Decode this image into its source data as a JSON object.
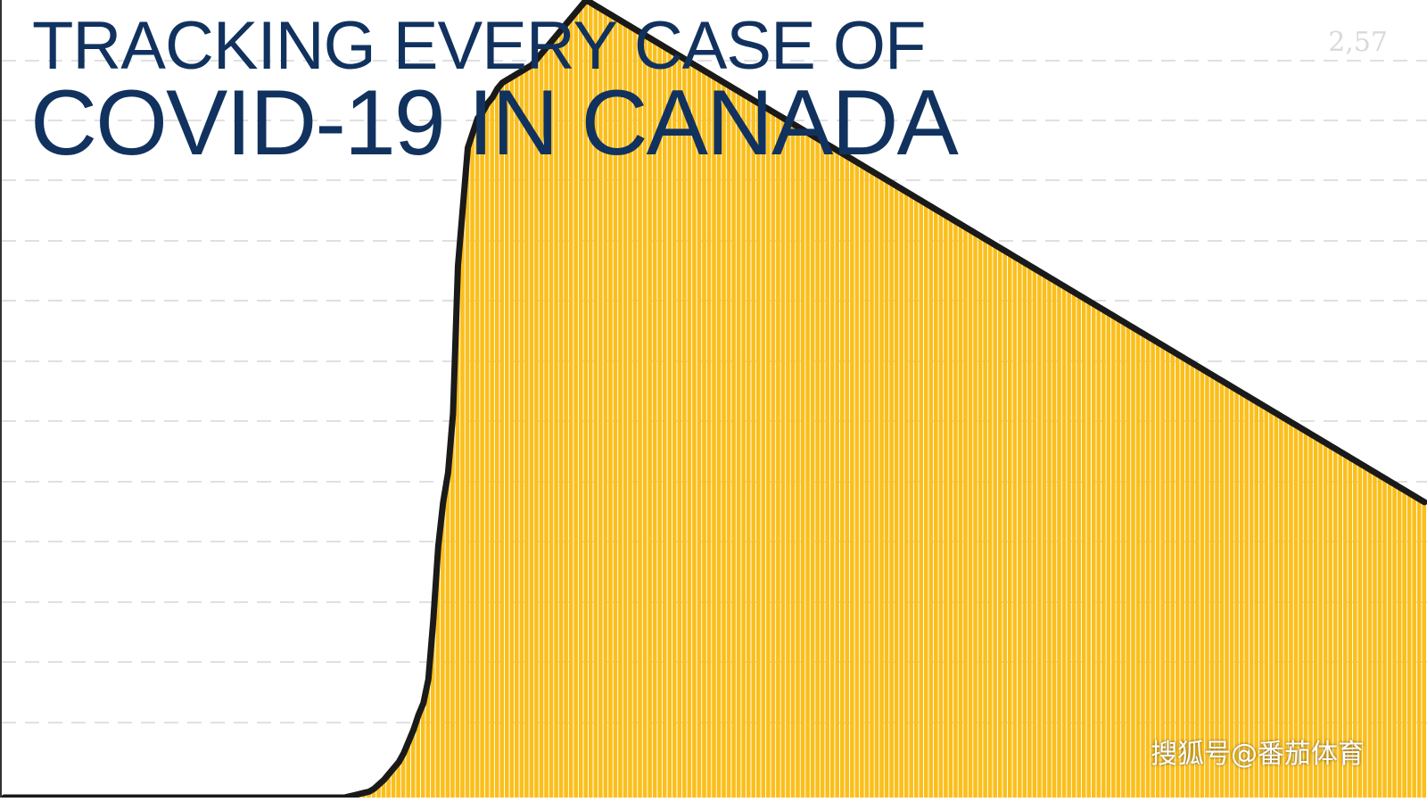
{
  "header": {
    "title_line1": "TRACKING EVERY CASE OF",
    "title_line2": "COVID-19 IN CANADA"
  },
  "watermark": "搜狐号@番茄体育",
  "colors": {
    "bars": "#fbbf1c",
    "bars_light": "#fde9b8",
    "average_line": "#1a1a1a",
    "title": "#11325e",
    "gridline": "#e0e0e0"
  },
  "chart_data": {
    "type": "bar",
    "title": "TRACKING EVERY CASE OF COVID-19 IN CANADA",
    "xlabel": "",
    "ylabel": "",
    "ylim": [
      0,
      2700
    ],
    "y_tick_labels": [
      "2,57"
    ],
    "grid": true,
    "series": [
      {
        "kind": "bar",
        "values": [
          0,
          0,
          0,
          0,
          0,
          0,
          0,
          0,
          0,
          0,
          0,
          0,
          0,
          0,
          0,
          0,
          0,
          0,
          0,
          0,
          0,
          0,
          0,
          0,
          0,
          0,
          0,
          0,
          0,
          0,
          0,
          0,
          0,
          0,
          0,
          0,
          0,
          0,
          0,
          0,
          0,
          0,
          0,
          0,
          0,
          0,
          0,
          0,
          0,
          0,
          0,
          0,
          0,
          0,
          0,
          0,
          0,
          0,
          0,
          0,
          0,
          0,
          0,
          0,
          0,
          0,
          0,
          0,
          0,
          0,
          4,
          8,
          12,
          16,
          20,
          30,
          45,
          60,
          80,
          100,
          120,
          150,
          190,
          230,
          280,
          320,
          400,
          600,
          850,
          1000,
          1100,
          1300,
          1800,
          2000,
          2200,
          2250,
          2300,
          2320,
          2350,
          2370,
          2400,
          2420,
          2430,
          2440,
          2450,
          2460,
          2470,
          2480,
          2500,
          2520,
          2540,
          2560,
          2580,
          2600,
          2620,
          2640,
          2660,
          2680,
          2700,
          2690,
          2680,
          2670,
          2660,
          2650,
          2640,
          2630,
          2620,
          2610,
          2600,
          2590,
          2580,
          2570,
          2560,
          2550,
          2540,
          2530,
          2520,
          2510,
          2500,
          2490,
          2480,
          2470,
          2460,
          2450,
          2440,
          2430,
          2420,
          2410,
          2400,
          2390,
          2380,
          2370,
          2360,
          2350,
          2340,
          2330,
          2320,
          2310,
          2300,
          2290,
          2280,
          2270,
          2260,
          2250,
          2240,
          2230,
          2220,
          2210,
          2200,
          2190,
          2180,
          2170,
          2160,
          2150,
          2140,
          2130,
          2120,
          2110,
          2100,
          2090,
          2080,
          2070,
          2060,
          2050,
          2040,
          2030,
          2020,
          2010,
          2000,
          1990,
          1980,
          1970,
          1960,
          1950,
          1940,
          1930,
          1920,
          1910,
          1900,
          1890,
          1880,
          1870,
          1860,
          1850,
          1840,
          1830,
          1820,
          1810,
          1800,
          1790,
          1780,
          1770,
          1760,
          1750,
          1740,
          1730,
          1720,
          1710,
          1700,
          1690,
          1680,
          1670,
          1660,
          1650,
          1640,
          1630,
          1620,
          1610,
          1600,
          1590,
          1580,
          1570,
          1560,
          1550,
          1540,
          1530,
          1520,
          1510,
          1500,
          1490,
          1480,
          1470,
          1460,
          1450,
          1440,
          1430,
          1420,
          1410,
          1400,
          1390,
          1380,
          1370,
          1360,
          1350,
          1340,
          1330,
          1320,
          1310,
          1300,
          1290,
          1280,
          1270,
          1260,
          1250,
          1240,
          1230,
          1220,
          1210,
          1200,
          1190,
          1180,
          1170,
          1160,
          1150,
          1140,
          1130,
          1120,
          1110,
          1100,
          1090,
          1080,
          1070,
          1060,
          1050,
          1040,
          1030,
          1020,
          1010,
          1000
        ]
      },
      {
        "kind": "line",
        "values": [
          0,
          0,
          0,
          0,
          0,
          0,
          0,
          0,
          0,
          0,
          0,
          0,
          0,
          0,
          0,
          0,
          0,
          0,
          0,
          0,
          0,
          0,
          0,
          0,
          0,
          0,
          0,
          0,
          0,
          0,
          0,
          0,
          0,
          0,
          0,
          0,
          0,
          0,
          0,
          0,
          0,
          0,
          0,
          0,
          0,
          0,
          0,
          0,
          0,
          0,
          0,
          0,
          0,
          0,
          0,
          0,
          0,
          0,
          0,
          0,
          0,
          0,
          0,
          0,
          0,
          0,
          0,
          0,
          0,
          0,
          4,
          8,
          12,
          16,
          20,
          30,
          45,
          60,
          80,
          100,
          120,
          150,
          190,
          230,
          280,
          320,
          400,
          600,
          850,
          1000,
          1100,
          1300,
          1800,
          2000,
          2200,
          2250,
          2300,
          2320,
          2350,
          2370,
          2400,
          2420,
          2430,
          2440,
          2450,
          2460,
          2470,
          2480,
          2500,
          2520,
          2540,
          2560,
          2580,
          2600,
          2620,
          2640,
          2660,
          2680,
          2700,
          2690,
          2680,
          2670,
          2660,
          2650,
          2640,
          2630,
          2620,
          2610,
          2600,
          2590,
          2580,
          2570,
          2560,
          2550,
          2540,
          2530,
          2520,
          2510,
          2500,
          2490,
          2480,
          2470,
          2460,
          2450,
          2440,
          2430,
          2420,
          2410,
          2400,
          2390,
          2380,
          2370,
          2360,
          2350,
          2340,
          2330,
          2320,
          2310,
          2300,
          2290,
          2280,
          2270,
          2260,
          2250,
          2240,
          2230,
          2220,
          2210,
          2200,
          2190,
          2180,
          2170,
          2160,
          2150,
          2140,
          2130,
          2120,
          2110,
          2100,
          2090,
          2080,
          2070,
          2060,
          2050,
          2040,
          2030,
          2020,
          2010,
          2000,
          1990,
          1980,
          1970,
          1960,
          1950,
          1940,
          1930,
          1920,
          1910,
          1900,
          1890,
          1880,
          1870,
          1860,
          1850,
          1840,
          1830,
          1820,
          1810,
          1800,
          1790,
          1780,
          1770,
          1760,
          1750,
          1740,
          1730,
          1720,
          1710,
          1700,
          1690,
          1680,
          1670,
          1660,
          1650,
          1640,
          1630,
          1620,
          1610,
          1600,
          1590,
          1580,
          1570,
          1560,
          1550,
          1540,
          1530,
          1520,
          1510,
          1500,
          1490,
          1480,
          1470,
          1460,
          1450,
          1440,
          1430,
          1420,
          1410,
          1400,
          1390,
          1380,
          1370,
          1360,
          1350,
          1340,
          1330,
          1320,
          1310,
          1300,
          1290,
          1280,
          1270,
          1260,
          1250,
          1240,
          1230,
          1220,
          1210,
          1200,
          1190,
          1180,
          1170,
          1160,
          1150,
          1140,
          1130,
          1120,
          1110,
          1100,
          1090,
          1080,
          1070,
          1060,
          1050,
          1040,
          1030,
          1020,
          1010,
          1000
        ]
      }
    ]
  }
}
